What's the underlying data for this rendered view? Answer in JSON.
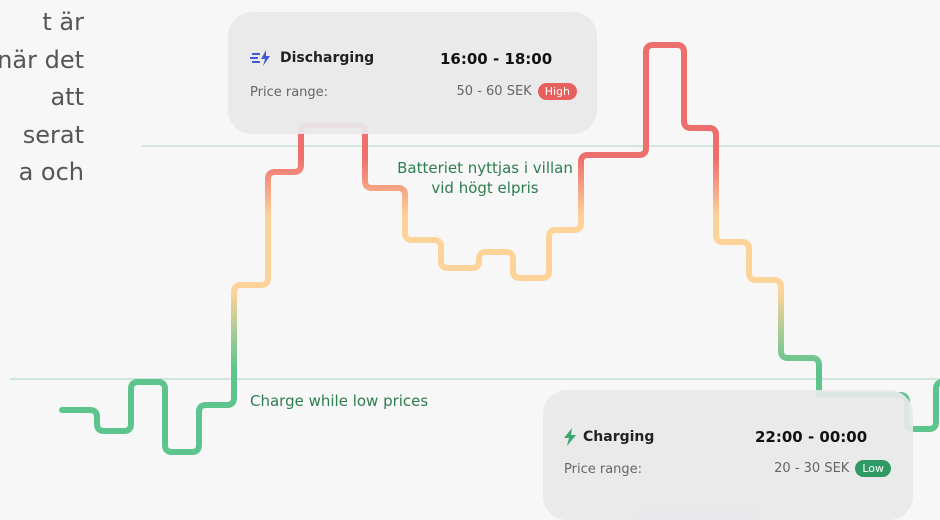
{
  "intro": {
    "lines": [
      "t är",
      "när det",
      "att",
      "serat",
      "a och"
    ]
  },
  "discharging": {
    "label": "Discharging",
    "time": "16:00 - 18:00",
    "price_label": "Price range:",
    "price": "50 - 60 SEK",
    "level": "High"
  },
  "charging": {
    "label": "Charging",
    "time": "22:00 - 00:00",
    "price_label": "Price range:",
    "price": "20 - 30 SEK",
    "level": "Low"
  },
  "annotations": {
    "high": [
      "Batteriet nyttjas i villan",
      "vid högt elpris"
    ],
    "low": "Charge while low prices"
  }
}
